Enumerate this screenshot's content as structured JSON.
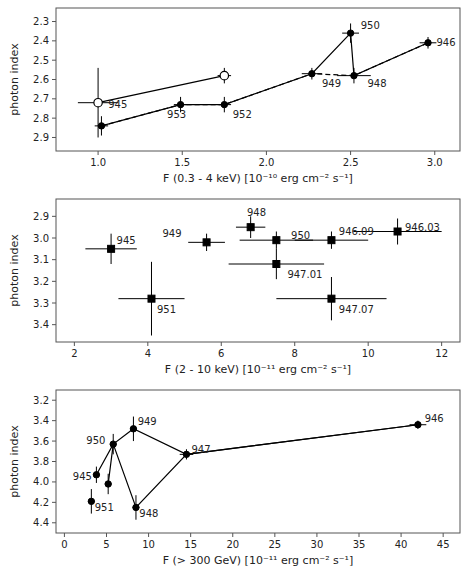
{
  "chart_data": [
    {
      "type": "scatter",
      "ylabel": "photon index",
      "xlabel": "F (0.3 - 4 keV) [10⁻¹⁰ erg cm⁻² s⁻¹]",
      "xlim": [
        0.75,
        3.15
      ],
      "ylim": [
        2.97,
        2.23
      ],
      "xticks": [
        {
          "value": 1,
          "label": "1.0"
        },
        1.5,
        {
          "value": 2,
          "label": "2.0"
        },
        2.5,
        {
          "value": 3,
          "label": "3.0"
        }
      ],
      "yticks": [
        2.3,
        2.4,
        2.5,
        2.6,
        2.7,
        2.8,
        2.9
      ],
      "series": [
        {
          "type": "line",
          "line_style": "solid",
          "color": "black",
          "x": [
            1.02,
            1.49,
            1.75,
            2.27,
            2.5,
            2.52,
            2.96
          ],
          "values": [
            2.84,
            2.73,
            2.73,
            2.57,
            2.36,
            2.58,
            2.41
          ]
        },
        {
          "type": "line",
          "line_style": "dashed",
          "color": "black",
          "x": [
            1.02,
            1.49,
            1.75,
            2.27,
            2.52,
            2.96
          ],
          "values": [
            2.84,
            2.73,
            2.73,
            2.57,
            2.58,
            2.41
          ]
        },
        {
          "type": "line",
          "line_style": "solid",
          "color": "black",
          "x": [
            1.0,
            1.75
          ],
          "values": [
            2.72,
            2.58
          ]
        },
        {
          "type": "scatter",
          "marker": "open-circle",
          "color": "black",
          "x": [
            1.0,
            1.75
          ],
          "values": [
            2.72,
            2.58
          ],
          "x_errors": [
            0.12,
            0.04
          ],
          "errors": [
            0.18,
            0.04
          ]
        },
        {
          "type": "scatter",
          "marker": "circle",
          "color": "black",
          "x": [
            1.02,
            1.49,
            1.75,
            2.27,
            2.5,
            2.52,
            2.96
          ],
          "values": [
            2.84,
            2.73,
            2.73,
            2.57,
            2.36,
            2.58,
            2.41
          ],
          "x_errors": [
            0.04,
            0.04,
            0.04,
            0.06,
            0.05,
            0.1,
            0.05
          ],
          "errors": [
            0.05,
            0.04,
            0.04,
            0.03,
            0.05,
            0.04,
            0.03
          ]
        }
      ],
      "annotations": [
        {
          "text": "945",
          "x": 1.06,
          "y": 2.73
        },
        {
          "text": "953",
          "x": 1.41,
          "y": 2.78
        },
        {
          "text": "952",
          "x": 1.8,
          "y": 2.78
        },
        {
          "text": "949",
          "x": 2.33,
          "y": 2.62
        },
        {
          "text": "950",
          "x": 2.56,
          "y": 2.32
        },
        {
          "text": "948",
          "x": 2.6,
          "y": 2.62
        },
        {
          "text": "946",
          "x": 3.01,
          "y": 2.41
        }
      ]
    },
    {
      "type": "scatter",
      "ylabel": "photon index",
      "xlabel": "F (2 - 10 keV) [10⁻¹¹ erg cm⁻² s⁻¹]",
      "xlim": [
        1.5,
        12.5
      ],
      "ylim": [
        3.48,
        2.82
      ],
      "xticks": [
        2,
        4,
        6,
        8,
        10,
        12
      ],
      "yticks": [
        2.9,
        {
          "value": 3,
          "label": "3.0"
        },
        3.1,
        3.2,
        3.3,
        3.4
      ],
      "series": [
        {
          "type": "scatter",
          "marker": "square",
          "color": "black",
          "x": [
            3.0,
            4.1,
            5.6,
            6.8,
            7.5,
            7.5,
            9.0,
            9.0,
            10.8
          ],
          "values": [
            3.05,
            3.28,
            3.02,
            2.95,
            3.01,
            3.12,
            3.01,
            3.28,
            2.97
          ],
          "x_errors": [
            0.7,
            0.9,
            0.5,
            0.4,
            1.0,
            1.3,
            1.0,
            1.5,
            1.2
          ],
          "errors": [
            0.07,
            0.17,
            0.04,
            0.05,
            0.04,
            0.07,
            0.04,
            0.1,
            0.06
          ]
        }
      ],
      "annotations": [
        {
          "text": "945",
          "x": 3.15,
          "y": 3.01
        },
        {
          "text": "951",
          "x": 4.25,
          "y": 3.33
        },
        {
          "text": "949",
          "x": 4.4,
          "y": 2.98
        },
        {
          "text": "948",
          "x": 6.7,
          "y": 2.88
        },
        {
          "text": "950",
          "x": 7.9,
          "y": 2.99
        },
        {
          "text": "947.01",
          "x": 7.8,
          "y": 3.17
        },
        {
          "text": "946.09",
          "x": 9.2,
          "y": 2.97
        },
        {
          "text": "947.07",
          "x": 9.2,
          "y": 3.33
        },
        {
          "text": "946.03",
          "x": 11.0,
          "y": 2.95
        }
      ]
    },
    {
      "type": "scatter",
      "ylabel": "photon index",
      "xlabel": "F (> 300 GeV) [10⁻¹¹ erg cm⁻² s⁻¹]",
      "xlim": [
        -1.0,
        47.0
      ],
      "ylim": [
        4.5,
        3.1
      ],
      "xticks": [
        0,
        5,
        10,
        15,
        20,
        25,
        30,
        35,
        40,
        45
      ],
      "yticks": [
        3.2,
        3.4,
        3.6,
        3.8,
        {
          "value": 4,
          "label": "4.0"
        },
        4.2,
        4.4
      ],
      "series": [
        {
          "type": "line",
          "line_style": "solid",
          "color": "black",
          "x": [
            3.8,
            5.8,
            8.2,
            14.5,
            42.0
          ],
          "values": [
            3.93,
            3.63,
            3.48,
            3.73,
            3.44
          ]
        },
        {
          "type": "line",
          "line_style": "solid",
          "color": "black",
          "x": [
            5.2,
            5.8,
            8.5,
            14.5,
            42.0
          ],
          "values": [
            4.02,
            3.63,
            4.25,
            3.73,
            3.44
          ]
        },
        {
          "type": "scatter",
          "marker": "circle",
          "color": "black",
          "x": [
            3.2,
            3.8,
            5.2,
            5.8,
            8.2,
            8.5,
            14.5,
            42.0
          ],
          "values": [
            4.19,
            3.93,
            4.02,
            3.63,
            3.48,
            4.25,
            3.73,
            3.44
          ],
          "x_errors": [
            0.4,
            0.4,
            0.4,
            0.4,
            0.4,
            0.4,
            0.8,
            1.0
          ],
          "errors": [
            0.12,
            0.08,
            0.1,
            0.1,
            0.12,
            0.12,
            0.05,
            0.04
          ]
        }
      ],
      "annotations": [
        {
          "text": "951",
          "x": 3.6,
          "y": 4.25
        },
        {
          "text": "945",
          "x": 1.0,
          "y": 3.95
        },
        {
          "text": "950",
          "x": 2.6,
          "y": 3.59
        },
        {
          "text": "949",
          "x": 8.7,
          "y": 3.41
        },
        {
          "text": "948",
          "x": 8.9,
          "y": 4.31
        },
        {
          "text": "947",
          "x": 15.1,
          "y": 3.68
        },
        {
          "text": "946",
          "x": 42.8,
          "y": 3.38
        }
      ]
    }
  ]
}
